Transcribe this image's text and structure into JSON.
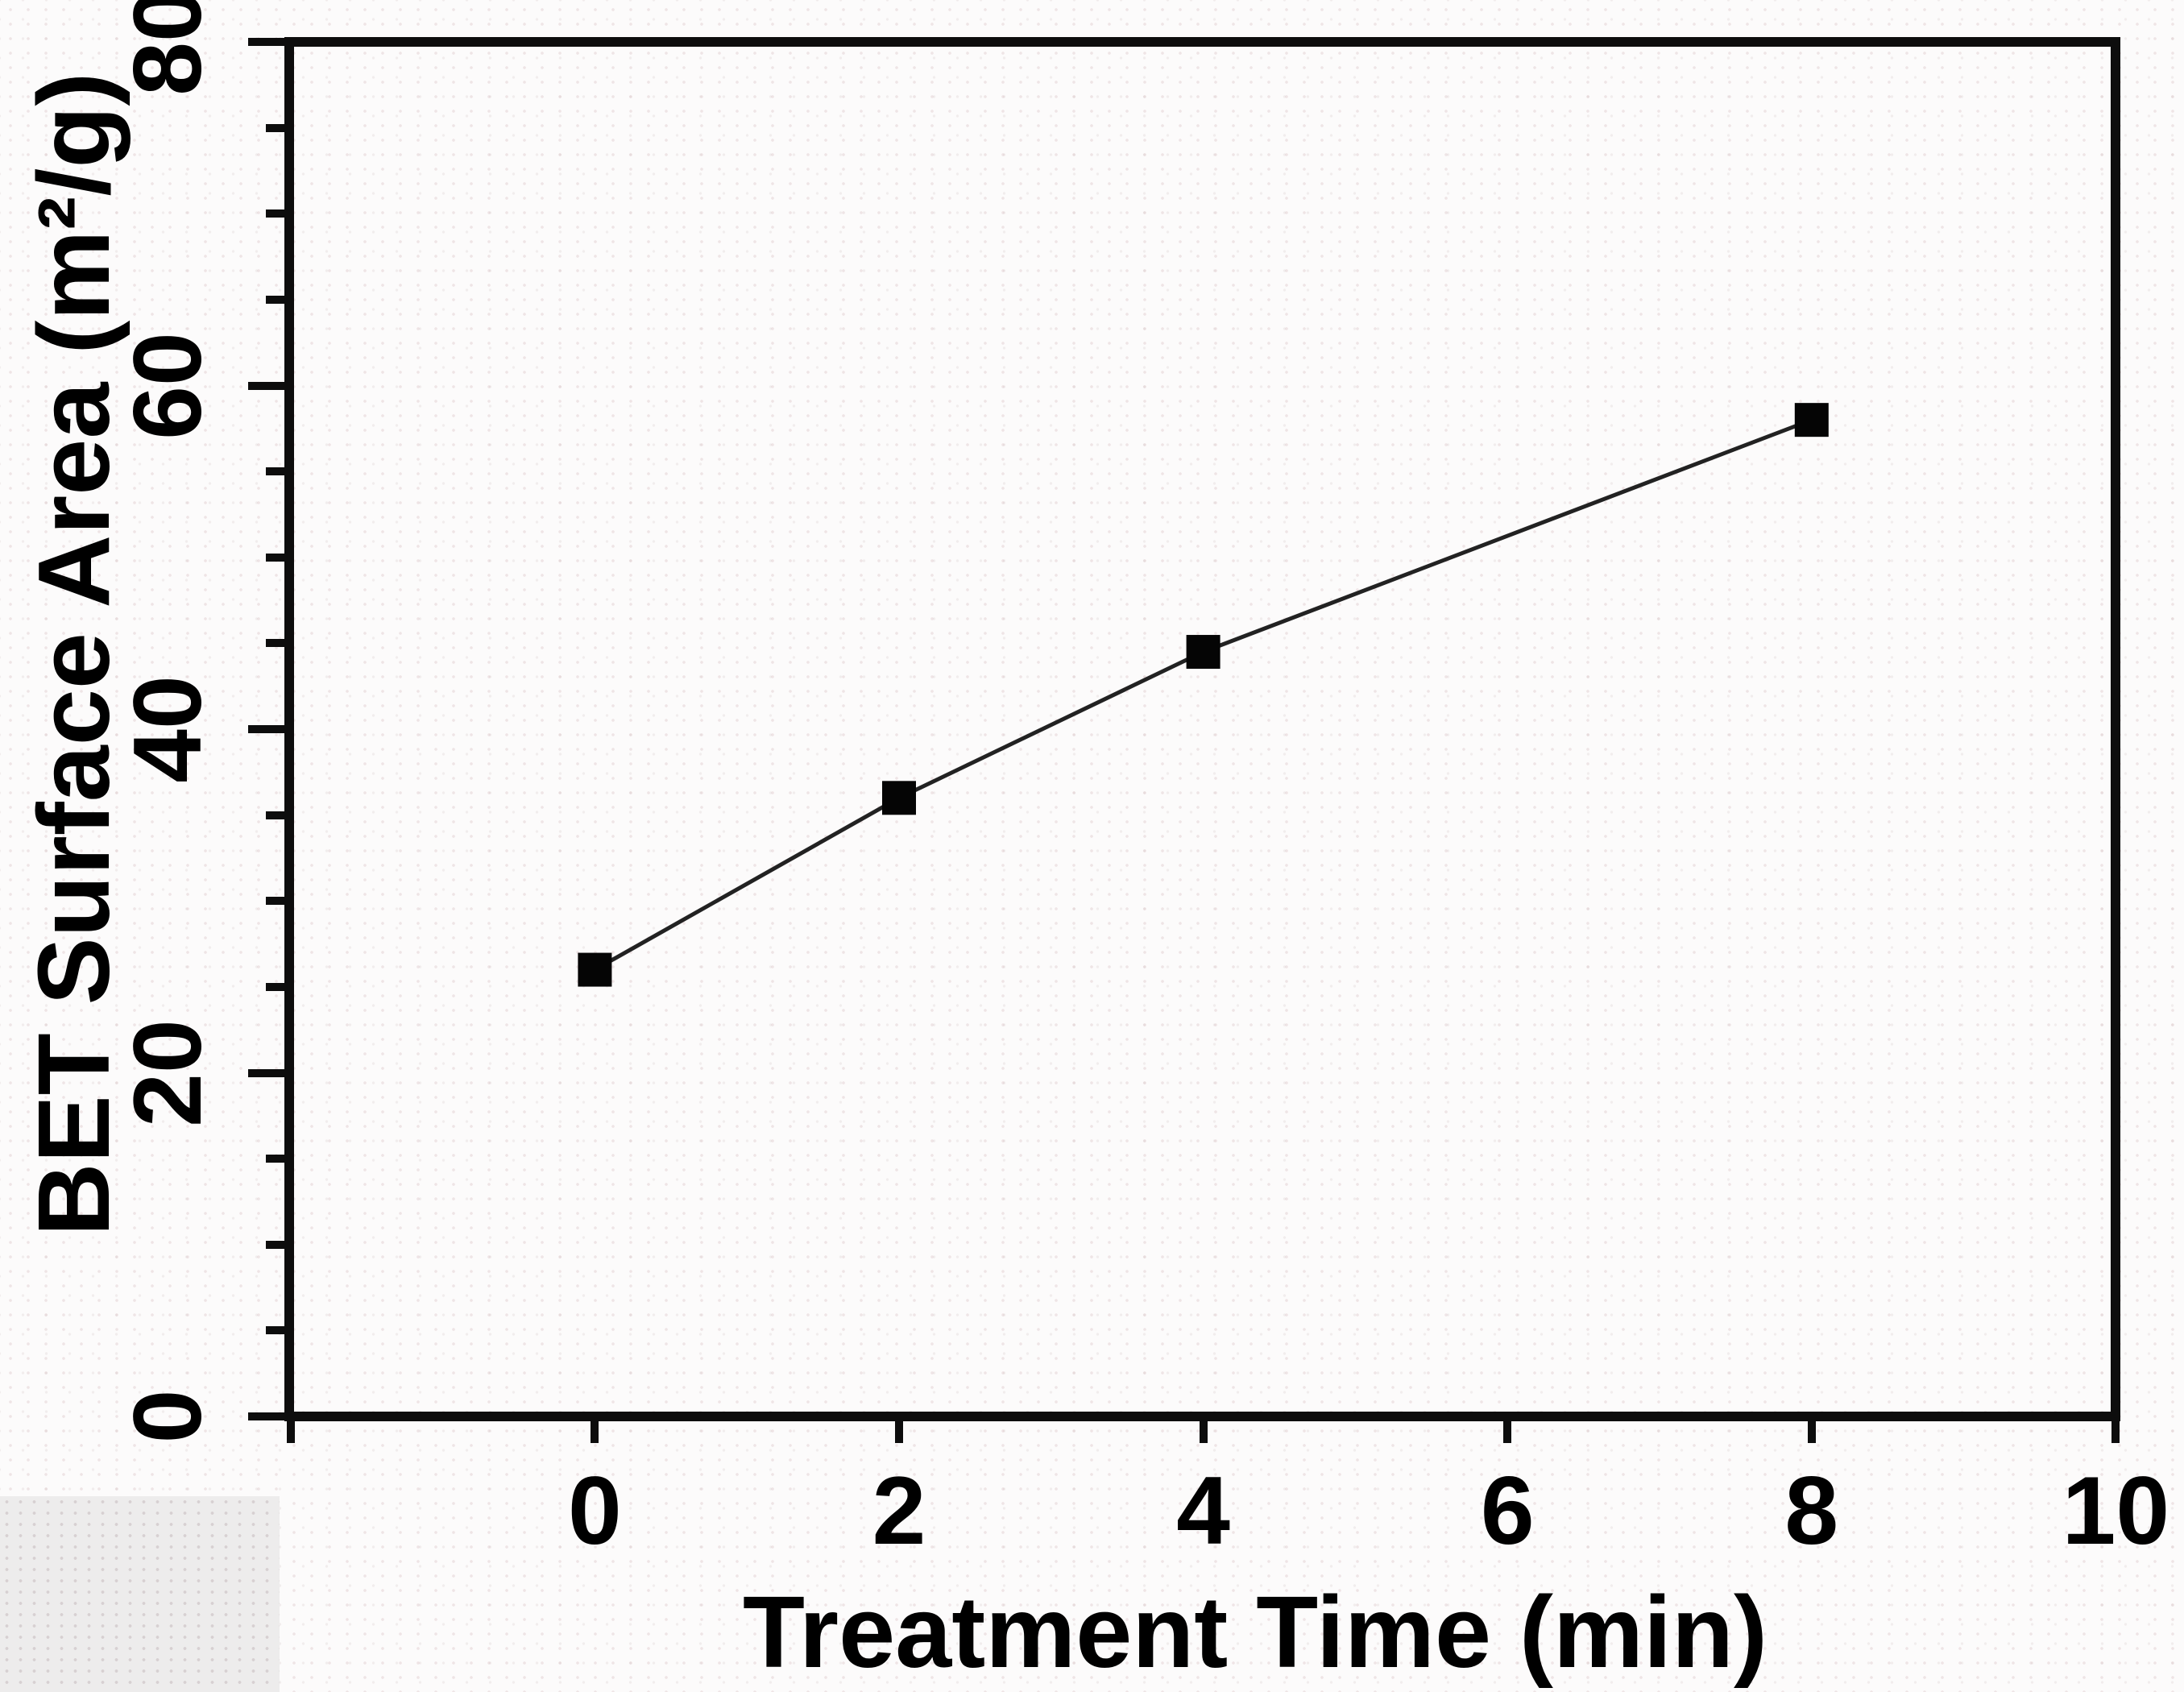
{
  "figure": {
    "description": "Line plot of BET surface area versus plasma treatment time",
    "background_color": "#fcfbfb",
    "axis_color": "#0d0d0d",
    "text_color": "#000000"
  },
  "chart_data": {
    "type": "line",
    "title": "",
    "xlabel": "Treatment Time (min)",
    "ylabel": "BET Surface Area (m²/g)",
    "points": [
      [
        0,
        26
      ],
      [
        2,
        36
      ],
      [
        4,
        44.5
      ],
      [
        8,
        58
      ]
    ],
    "x": [
      0,
      2,
      4,
      8
    ],
    "y": [
      26,
      36,
      44.5,
      58
    ],
    "xlim": [
      -2,
      10
    ],
    "ylim": [
      0,
      80
    ],
    "x_ticks": [
      0,
      2,
      4,
      6,
      8,
      10
    ],
    "x_tick_marks": [
      -2,
      0,
      2,
      4,
      6,
      8,
      10
    ],
    "y_ticks": [
      0,
      20,
      40,
      60,
      80
    ],
    "y_minor_step": 5,
    "grid": "off",
    "legend": "none",
    "marker": "filled-square",
    "marker_color": "#050505",
    "line_color": "#222222",
    "series": [
      {
        "name": "BET Surface Area",
        "x": [
          0,
          2,
          4,
          8
        ],
        "y": [
          26,
          36,
          44.5,
          58
        ]
      }
    ]
  }
}
